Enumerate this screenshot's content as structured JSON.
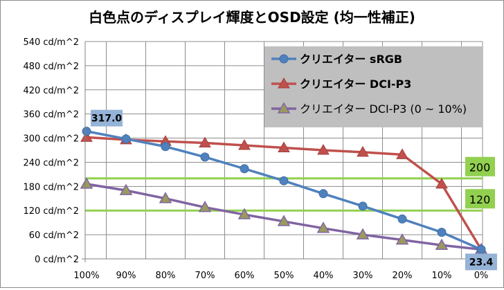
{
  "chart_data": {
    "type": "line",
    "title": "白色点のディスプレイ輝度とOSD設定 (均一性補正)",
    "xlabel": "",
    "ylabel": "",
    "categories": [
      "100%",
      "90%",
      "80%",
      "70%",
      "60%",
      "50%",
      "40%",
      "30%",
      "20%",
      "10%",
      "0%"
    ],
    "y_ticks": [
      "0 cd/m^2",
      "60 cd/m^2",
      "120 cd/m^2",
      "180 cd/m^2",
      "240 cd/m^2",
      "300 cd/m^2",
      "360 cd/m^2",
      "420 cd/m^2",
      "480 cd/m^2",
      "540 cd/m^2"
    ],
    "ylim": [
      0,
      540
    ],
    "grid": true,
    "legend_position": "top-right",
    "series": [
      {
        "name": "クリエイター sRGB",
        "color": "#4f81bd",
        "marker": "circle",
        "values": [
          317.0,
          298,
          279,
          253,
          224,
          194,
          162,
          131,
          99,
          66,
          23.4
        ]
      },
      {
        "name": "クリエイター DCI-P3",
        "color": "#c0504d",
        "marker": "triangle",
        "values": [
          302,
          296,
          292,
          288,
          282,
          276,
          270,
          265,
          259,
          186,
          23.4
        ]
      },
      {
        "name": "クリエイター DCI-P3 (0 ~ 10%)",
        "color": "#8064a2",
        "marker": "triangle-olive",
        "values": [
          186,
          170,
          150,
          128,
          110,
          93,
          76,
          60,
          47,
          34,
          23.4
        ]
      }
    ],
    "reference_lines": [
      {
        "label": "200",
        "value": 200,
        "color": "#92d050"
      },
      {
        "label": "120",
        "value": 120,
        "color": "#92d050"
      }
    ],
    "annotations": [
      {
        "label": "317.0",
        "category": "100%",
        "series": 0
      },
      {
        "label": "23.4",
        "category": "0%",
        "series": 0
      }
    ]
  }
}
